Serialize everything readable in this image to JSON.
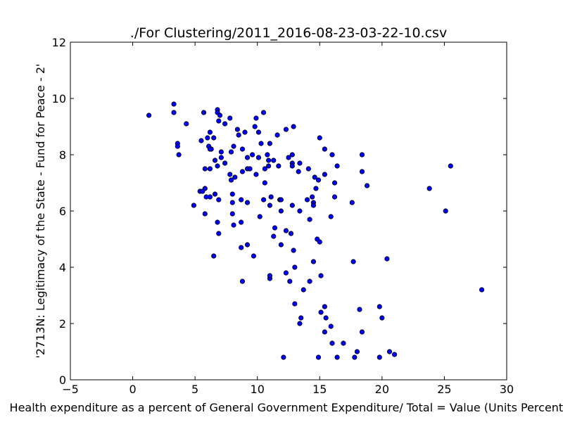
{
  "chart_data": {
    "type": "scatter",
    "title": "./For Clustering/2011_2016-08-23-03-22-10.csv",
    "xlabel": "Health expenditure as a percent of General Government Expenditure/ Total = Value (Units Percent)",
    "ylabel": "'2713N: Legitimacy of the State - Fund for Peace - 2'",
    "xlim": [
      -5,
      30
    ],
    "ylim": [
      0,
      12
    ],
    "xticks": [
      "−5",
      "0",
      "5",
      "10",
      "15",
      "20",
      "25",
      "30"
    ],
    "yticks": [
      "0",
      "2",
      "4",
      "6",
      "8",
      "10",
      "12"
    ],
    "grid": false,
    "marker_color": "#0000ff",
    "points": [
      [
        1.3,
        9.4
      ],
      [
        3.3,
        9.8
      ],
      [
        3.3,
        9.5
      ],
      [
        4.3,
        9.1
      ],
      [
        3.6,
        8.4
      ],
      [
        3.6,
        8.3
      ],
      [
        3.7,
        8.0
      ],
      [
        5.7,
        9.5
      ],
      [
        6.8,
        9.6
      ],
      [
        6.8,
        9.5
      ],
      [
        7.0,
        9.4
      ],
      [
        6.9,
        9.2
      ],
      [
        7.4,
        9.1
      ],
      [
        7.8,
        9.3
      ],
      [
        5.5,
        8.5
      ],
      [
        6.0,
        8.6
      ],
      [
        6.2,
        8.8
      ],
      [
        6.5,
        8.6
      ],
      [
        6.1,
        8.3
      ],
      [
        6.3,
        8.2
      ],
      [
        6.2,
        8.2
      ],
      [
        7.1,
        8.1
      ],
      [
        7.1,
        7.9
      ],
      [
        6.6,
        7.8
      ],
      [
        7.9,
        8.1
      ],
      [
        8.1,
        8.3
      ],
      [
        8.4,
        8.9
      ],
      [
        8.5,
        8.7
      ],
      [
        9.0,
        8.8
      ],
      [
        9.8,
        9.0
      ],
      [
        9.9,
        9.3
      ],
      [
        10.5,
        9.5
      ],
      [
        10.1,
        8.8
      ],
      [
        8.8,
        8.2
      ],
      [
        9.2,
        7.9
      ],
      [
        9.6,
        8.0
      ],
      [
        10.1,
        7.9
      ],
      [
        10.3,
        8.4
      ],
      [
        11.0,
        8.4
      ],
      [
        11.6,
        8.7
      ],
      [
        12.3,
        8.9
      ],
      [
        12.9,
        9.0
      ],
      [
        5.8,
        7.5
      ],
      [
        6.2,
        7.5
      ],
      [
        6.8,
        7.6
      ],
      [
        7.4,
        7.7
      ],
      [
        7.8,
        7.3
      ],
      [
        7.9,
        7.1
      ],
      [
        8.2,
        7.2
      ],
      [
        8.8,
        7.4
      ],
      [
        9.2,
        7.5
      ],
      [
        9.4,
        7.5
      ],
      [
        9.9,
        7.3
      ],
      [
        10.6,
        7.5
      ],
      [
        10.8,
        8.0
      ],
      [
        10.9,
        7.8
      ],
      [
        10.9,
        7.6
      ],
      [
        11.3,
        7.8
      ],
      [
        11.7,
        7.6
      ],
      [
        12.5,
        7.9
      ],
      [
        12.8,
        8.0
      ],
      [
        12.8,
        7.7
      ],
      [
        12.8,
        7.6
      ],
      [
        13.3,
        7.4
      ],
      [
        13.4,
        7.7
      ],
      [
        14.1,
        7.5
      ],
      [
        15.0,
        8.6
      ],
      [
        15.4,
        8.2
      ],
      [
        16.0,
        8.0
      ],
      [
        16.4,
        7.6
      ],
      [
        15.4,
        7.3
      ],
      [
        14.6,
        7.2
      ],
      [
        14.9,
        7.1
      ],
      [
        16.2,
        7.0
      ],
      [
        18.4,
        8.0
      ],
      [
        18.4,
        7.4
      ],
      [
        18.8,
        6.9
      ],
      [
        25.5,
        7.6
      ],
      [
        23.8,
        6.8
      ],
      [
        25.1,
        6.0
      ],
      [
        5.4,
        6.7
      ],
      [
        5.8,
        6.8
      ],
      [
        5.6,
        6.7
      ],
      [
        5.9,
        6.5
      ],
      [
        6.2,
        6.5
      ],
      [
        6.6,
        6.6
      ],
      [
        6.9,
        6.4
      ],
      [
        8.0,
        6.6
      ],
      [
        8.0,
        6.3
      ],
      [
        8.7,
        6.4
      ],
      [
        9.2,
        6.3
      ],
      [
        10.6,
        7.0
      ],
      [
        10.5,
        6.4
      ],
      [
        11.1,
        6.5
      ],
      [
        11.8,
        6.4
      ],
      [
        11.9,
        6.4
      ],
      [
        11.0,
        6.2
      ],
      [
        11.9,
        6.0
      ],
      [
        12.8,
        6.2
      ],
      [
        13.4,
        6.0
      ],
      [
        14.0,
        6.4
      ],
      [
        14.4,
        6.5
      ],
      [
        14.5,
        6.3
      ],
      [
        14.5,
        6.2
      ],
      [
        14.7,
        6.8
      ],
      [
        16.2,
        6.5
      ],
      [
        17.6,
        6.3
      ],
      [
        15.9,
        5.8
      ],
      [
        14.2,
        5.7
      ],
      [
        4.9,
        6.2
      ],
      [
        5.8,
        5.9
      ],
      [
        8.0,
        5.9
      ],
      [
        10.2,
        5.8
      ],
      [
        6.8,
        5.6
      ],
      [
        6.9,
        5.2
      ],
      [
        8.1,
        5.5
      ],
      [
        8.7,
        5.6
      ],
      [
        11.4,
        5.4
      ],
      [
        11.3,
        5.1
      ],
      [
        12.3,
        5.3
      ],
      [
        12.7,
        5.2
      ],
      [
        9.2,
        4.8
      ],
      [
        8.7,
        4.7
      ],
      [
        9.7,
        4.4
      ],
      [
        11.9,
        4.8
      ],
      [
        12.9,
        4.6
      ],
      [
        14.8,
        5.0
      ],
      [
        15.0,
        4.9
      ],
      [
        6.5,
        4.4
      ],
      [
        14.5,
        4.2
      ],
      [
        17.7,
        4.2
      ],
      [
        20.4,
        4.3
      ],
      [
        13.0,
        4.0
      ],
      [
        12.3,
        3.8
      ],
      [
        11.0,
        3.6
      ],
      [
        11.0,
        3.7
      ],
      [
        12.6,
        3.5
      ],
      [
        14.2,
        3.5
      ],
      [
        15.1,
        3.7
      ],
      [
        13.7,
        3.2
      ],
      [
        8.8,
        3.5
      ],
      [
        28.0,
        3.2
      ],
      [
        13.0,
        2.7
      ],
      [
        15.4,
        2.6
      ],
      [
        15.1,
        2.4
      ],
      [
        13.5,
        2.2
      ],
      [
        13.4,
        2.0
      ],
      [
        15.5,
        2.2
      ],
      [
        15.9,
        1.9
      ],
      [
        15.4,
        1.7
      ],
      [
        18.2,
        2.5
      ],
      [
        19.8,
        2.6
      ],
      [
        20.0,
        2.2
      ],
      [
        18.4,
        1.7
      ],
      [
        16.0,
        1.3
      ],
      [
        16.9,
        1.3
      ],
      [
        18.0,
        1.0
      ],
      [
        12.1,
        0.8
      ],
      [
        14.9,
        0.8
      ],
      [
        16.4,
        0.8
      ],
      [
        17.8,
        0.8
      ],
      [
        19.8,
        0.8
      ],
      [
        20.6,
        1.0
      ],
      [
        21.0,
        0.9
      ]
    ]
  }
}
